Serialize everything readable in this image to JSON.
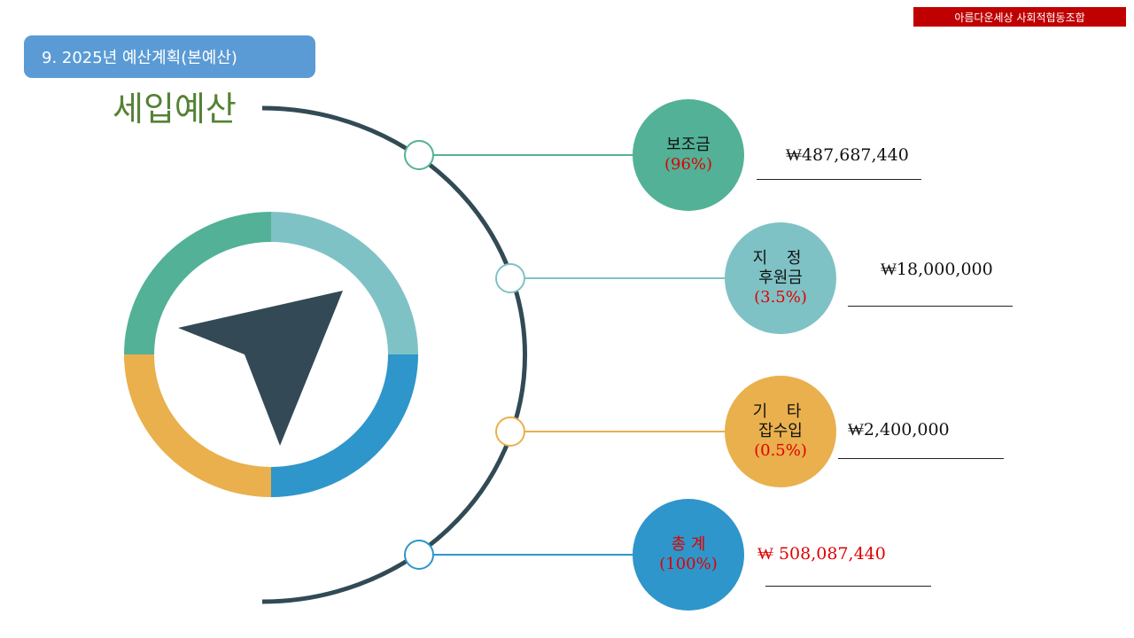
{
  "header": {
    "org_name": "아름다운세상 사회적협동조합",
    "section_title": "9. 2025년 예산계획(본예산)",
    "main_heading": "세입예산"
  },
  "colors": {
    "accent_red": "#c00000",
    "title_blue": "#5b9bd5",
    "heading_green": "#548235",
    "subsidy_green": "#52b196",
    "donation_teal": "#7fc2c6",
    "other_orange": "#e9b04d",
    "total_blue": "#2e96ca",
    "arc_dark": "#324a55"
  },
  "items": [
    {
      "id": "subsidy",
      "label_line1": "보조금",
      "label_line2": "",
      "percent": "(96%)",
      "amount": "₩487,687,440"
    },
    {
      "id": "donation",
      "label_line1": "지 정",
      "label_line2": "후원금",
      "percent": "(3.5%)",
      "amount": "₩18,000,000"
    },
    {
      "id": "other",
      "label_line1": "기 타",
      "label_line2": "잡수입",
      "percent": "(0.5%)",
      "amount": "₩2,400,000"
    },
    {
      "id": "total",
      "label_line1": "총 계",
      "label_line2": "",
      "percent": "(100%)",
      "amount": "₩ 508,087,440"
    }
  ],
  "icon": "compass-arrow-icon"
}
